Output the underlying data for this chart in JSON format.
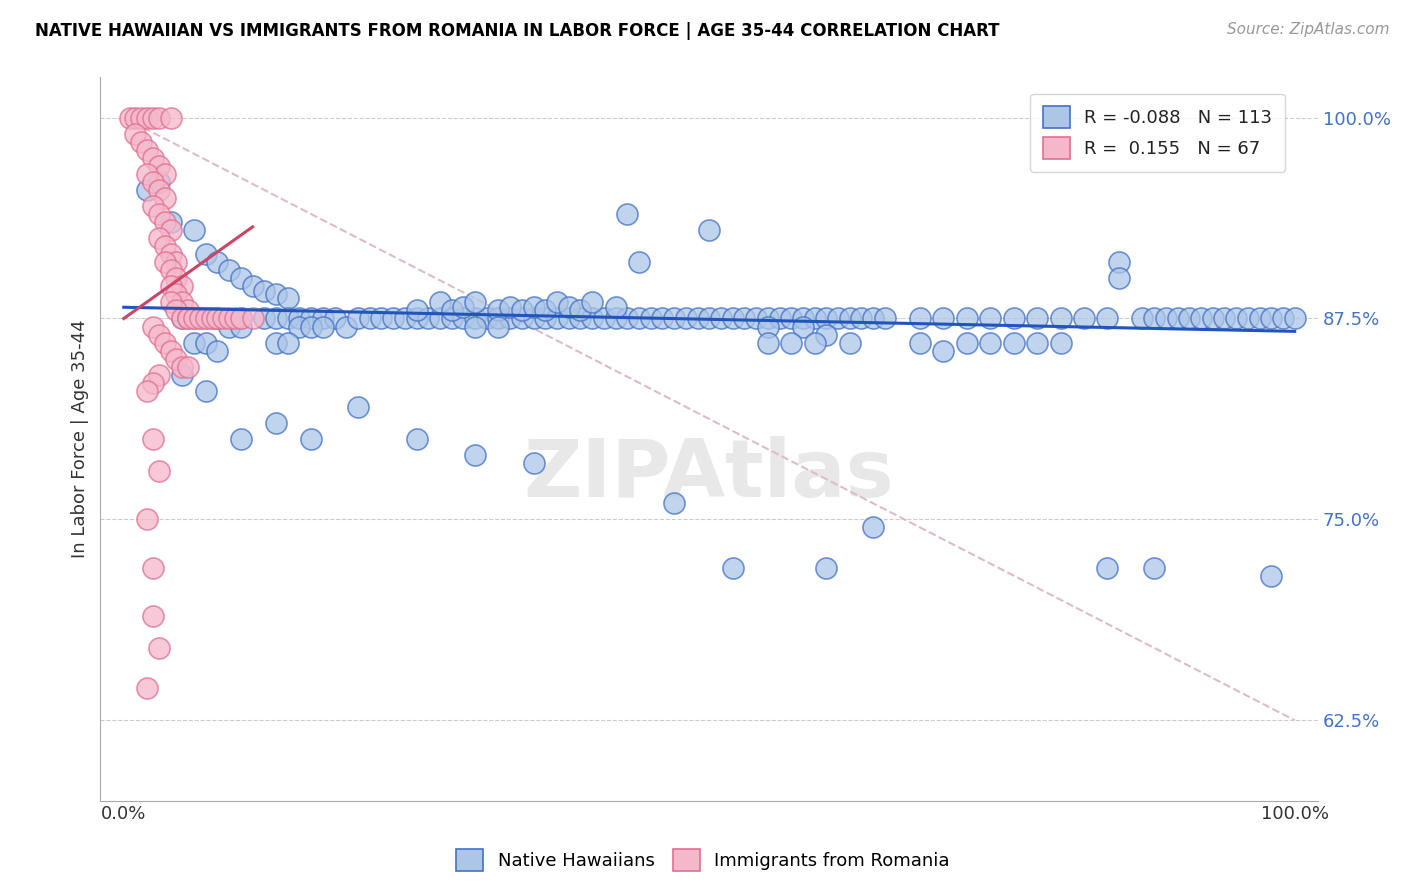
{
  "title": "NATIVE HAWAIIAN VS IMMIGRANTS FROM ROMANIA IN LABOR FORCE | AGE 35-44 CORRELATION CHART",
  "source": "Source: ZipAtlas.com",
  "ylabel": "In Labor Force | Age 35-44",
  "y_min": 0.575,
  "y_max": 1.025,
  "x_min": -0.02,
  "x_max": 1.02,
  "blue_color": "#adc6e8",
  "pink_color": "#f5b8cb",
  "blue_edge_color": "#4472c4",
  "pink_edge_color": "#e07090",
  "blue_line_color": "#2255bb",
  "pink_line_color": "#cc4466",
  "ref_line_color": "#ddbbcc",
  "blue_scatter": [
    [
      0.02,
      0.955
    ],
    [
      0.03,
      0.96
    ],
    [
      0.04,
      0.935
    ],
    [
      0.06,
      0.93
    ],
    [
      0.07,
      0.915
    ],
    [
      0.08,
      0.91
    ],
    [
      0.09,
      0.905
    ],
    [
      0.1,
      0.9
    ],
    [
      0.11,
      0.895
    ],
    [
      0.12,
      0.892
    ],
    [
      0.13,
      0.89
    ],
    [
      0.14,
      0.888
    ],
    [
      0.05,
      0.875
    ],
    [
      0.08,
      0.875
    ],
    [
      0.1,
      0.875
    ],
    [
      0.12,
      0.875
    ],
    [
      0.13,
      0.875
    ],
    [
      0.14,
      0.875
    ],
    [
      0.15,
      0.875
    ],
    [
      0.16,
      0.875
    ],
    [
      0.17,
      0.875
    ],
    [
      0.18,
      0.875
    ],
    [
      0.19,
      0.87
    ],
    [
      0.2,
      0.875
    ],
    [
      0.21,
      0.875
    ],
    [
      0.22,
      0.875
    ],
    [
      0.23,
      0.875
    ],
    [
      0.24,
      0.875
    ],
    [
      0.25,
      0.875
    ],
    [
      0.26,
      0.875
    ],
    [
      0.27,
      0.875
    ],
    [
      0.28,
      0.875
    ],
    [
      0.29,
      0.875
    ],
    [
      0.3,
      0.875
    ],
    [
      0.31,
      0.875
    ],
    [
      0.32,
      0.875
    ],
    [
      0.33,
      0.875
    ],
    [
      0.34,
      0.875
    ],
    [
      0.35,
      0.875
    ],
    [
      0.36,
      0.875
    ],
    [
      0.37,
      0.875
    ],
    [
      0.38,
      0.875
    ],
    [
      0.39,
      0.875
    ],
    [
      0.4,
      0.875
    ],
    [
      0.41,
      0.875
    ],
    [
      0.42,
      0.875
    ],
    [
      0.43,
      0.875
    ],
    [
      0.44,
      0.875
    ],
    [
      0.45,
      0.875
    ],
    [
      0.46,
      0.875
    ],
    [
      0.47,
      0.875
    ],
    [
      0.48,
      0.875
    ],
    [
      0.49,
      0.875
    ],
    [
      0.5,
      0.875
    ],
    [
      0.51,
      0.875
    ],
    [
      0.52,
      0.875
    ],
    [
      0.53,
      0.875
    ],
    [
      0.54,
      0.875
    ],
    [
      0.55,
      0.875
    ],
    [
      0.56,
      0.875
    ],
    [
      0.57,
      0.875
    ],
    [
      0.58,
      0.875
    ],
    [
      0.59,
      0.875
    ],
    [
      0.6,
      0.875
    ],
    [
      0.61,
      0.875
    ],
    [
      0.62,
      0.875
    ],
    [
      0.63,
      0.875
    ],
    [
      0.64,
      0.875
    ],
    [
      0.25,
      0.88
    ],
    [
      0.27,
      0.885
    ],
    [
      0.28,
      0.88
    ],
    [
      0.29,
      0.882
    ],
    [
      0.3,
      0.885
    ],
    [
      0.32,
      0.88
    ],
    [
      0.33,
      0.882
    ],
    [
      0.34,
      0.88
    ],
    [
      0.35,
      0.882
    ],
    [
      0.36,
      0.88
    ],
    [
      0.37,
      0.885
    ],
    [
      0.38,
      0.882
    ],
    [
      0.39,
      0.88
    ],
    [
      0.4,
      0.885
    ],
    [
      0.42,
      0.882
    ],
    [
      0.43,
      0.94
    ],
    [
      0.44,
      0.91
    ],
    [
      0.5,
      0.93
    ],
    [
      0.55,
      0.87
    ],
    [
      0.58,
      0.87
    ],
    [
      0.6,
      0.865
    ],
    [
      0.62,
      0.86
    ],
    [
      0.65,
      0.875
    ],
    [
      0.68,
      0.875
    ],
    [
      0.7,
      0.875
    ],
    [
      0.72,
      0.875
    ],
    [
      0.74,
      0.875
    ],
    [
      0.76,
      0.875
    ],
    [
      0.78,
      0.875
    ],
    [
      0.8,
      0.875
    ],
    [
      0.82,
      0.875
    ],
    [
      0.84,
      0.875
    ],
    [
      0.85,
      0.91
    ],
    [
      0.85,
      0.9
    ],
    [
      0.87,
      0.875
    ],
    [
      0.88,
      0.875
    ],
    [
      0.89,
      0.875
    ],
    [
      0.9,
      0.875
    ],
    [
      0.91,
      0.875
    ],
    [
      0.92,
      0.875
    ],
    [
      0.93,
      0.875
    ],
    [
      0.94,
      0.875
    ],
    [
      0.95,
      0.875
    ],
    [
      0.96,
      0.875
    ],
    [
      0.97,
      0.875
    ],
    [
      0.98,
      0.875
    ],
    [
      0.99,
      0.875
    ],
    [
      1.0,
      0.875
    ],
    [
      0.68,
      0.86
    ],
    [
      0.7,
      0.855
    ],
    [
      0.72,
      0.86
    ],
    [
      0.74,
      0.86
    ],
    [
      0.76,
      0.86
    ],
    [
      0.78,
      0.86
    ],
    [
      0.8,
      0.86
    ],
    [
      0.55,
      0.86
    ],
    [
      0.57,
      0.86
    ],
    [
      0.59,
      0.86
    ],
    [
      0.3,
      0.87
    ],
    [
      0.32,
      0.87
    ],
    [
      0.15,
      0.87
    ],
    [
      0.16,
      0.87
    ],
    [
      0.17,
      0.87
    ],
    [
      0.09,
      0.87
    ],
    [
      0.1,
      0.87
    ],
    [
      0.06,
      0.86
    ],
    [
      0.07,
      0.86
    ],
    [
      0.13,
      0.86
    ],
    [
      0.14,
      0.86
    ],
    [
      0.08,
      0.855
    ],
    [
      0.05,
      0.84
    ],
    [
      0.07,
      0.83
    ],
    [
      0.1,
      0.8
    ],
    [
      0.13,
      0.81
    ],
    [
      0.16,
      0.8
    ],
    [
      0.2,
      0.82
    ],
    [
      0.25,
      0.8
    ],
    [
      0.3,
      0.79
    ],
    [
      0.35,
      0.785
    ],
    [
      0.47,
      0.76
    ],
    [
      0.52,
      0.72
    ],
    [
      0.6,
      0.72
    ],
    [
      0.64,
      0.745
    ],
    [
      0.84,
      0.72
    ],
    [
      0.88,
      0.72
    ],
    [
      0.98,
      0.715
    ]
  ],
  "pink_scatter": [
    [
      0.005,
      1.0
    ],
    [
      0.01,
      1.0
    ],
    [
      0.015,
      1.0
    ],
    [
      0.02,
      1.0
    ],
    [
      0.025,
      1.0
    ],
    [
      0.03,
      1.0
    ],
    [
      0.04,
      1.0
    ],
    [
      0.01,
      0.99
    ],
    [
      0.015,
      0.985
    ],
    [
      0.02,
      0.98
    ],
    [
      0.025,
      0.975
    ],
    [
      0.03,
      0.97
    ],
    [
      0.035,
      0.965
    ],
    [
      0.02,
      0.965
    ],
    [
      0.025,
      0.96
    ],
    [
      0.03,
      0.955
    ],
    [
      0.035,
      0.95
    ],
    [
      0.025,
      0.945
    ],
    [
      0.03,
      0.94
    ],
    [
      0.035,
      0.935
    ],
    [
      0.04,
      0.93
    ],
    [
      0.03,
      0.925
    ],
    [
      0.035,
      0.92
    ],
    [
      0.04,
      0.915
    ],
    [
      0.045,
      0.91
    ],
    [
      0.035,
      0.91
    ],
    [
      0.04,
      0.905
    ],
    [
      0.045,
      0.9
    ],
    [
      0.05,
      0.895
    ],
    [
      0.04,
      0.895
    ],
    [
      0.045,
      0.89
    ],
    [
      0.05,
      0.885
    ],
    [
      0.055,
      0.88
    ],
    [
      0.04,
      0.885
    ],
    [
      0.045,
      0.88
    ],
    [
      0.05,
      0.875
    ],
    [
      0.055,
      0.875
    ],
    [
      0.06,
      0.875
    ],
    [
      0.065,
      0.875
    ],
    [
      0.07,
      0.875
    ],
    [
      0.075,
      0.875
    ],
    [
      0.055,
      0.875
    ],
    [
      0.06,
      0.875
    ],
    [
      0.065,
      0.875
    ],
    [
      0.07,
      0.875
    ],
    [
      0.075,
      0.875
    ],
    [
      0.08,
      0.875
    ],
    [
      0.085,
      0.875
    ],
    [
      0.09,
      0.875
    ],
    [
      0.095,
      0.875
    ],
    [
      0.1,
      0.875
    ],
    [
      0.11,
      0.875
    ],
    [
      0.025,
      0.87
    ],
    [
      0.03,
      0.865
    ],
    [
      0.035,
      0.86
    ],
    [
      0.04,
      0.855
    ],
    [
      0.045,
      0.85
    ],
    [
      0.05,
      0.845
    ],
    [
      0.055,
      0.845
    ],
    [
      0.03,
      0.84
    ],
    [
      0.025,
      0.835
    ],
    [
      0.02,
      0.83
    ],
    [
      0.025,
      0.8
    ],
    [
      0.03,
      0.78
    ],
    [
      0.02,
      0.75
    ],
    [
      0.025,
      0.72
    ],
    [
      0.025,
      0.69
    ],
    [
      0.03,
      0.67
    ],
    [
      0.02,
      0.645
    ]
  ],
  "blue_trend": [
    0.0,
    1.0,
    0.882,
    0.867
  ],
  "pink_trend": [
    0.0,
    0.11,
    0.875,
    0.932
  ],
  "ref_line": [
    0.0,
    1.0,
    1.0,
    0.625
  ]
}
